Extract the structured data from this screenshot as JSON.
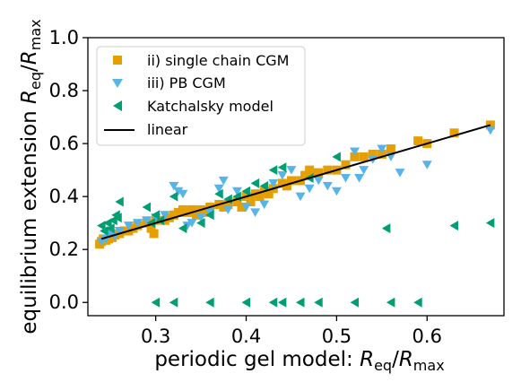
{
  "chart_data": {
    "type": "scatter",
    "xlabel": "periodic gel model: R_eq/R_max",
    "ylabel": "equilibrium extension R_eq/R_max",
    "xlabel_parts": {
      "text": "periodic gel model: ",
      "sym": "R",
      "sub1": "eq",
      "slash": "/",
      "sym2": "R",
      "sub2": "max"
    },
    "ylabel_parts": {
      "text": "equilibrium extension ",
      "sym": "R",
      "sub1": "eq",
      "slash": "/",
      "sym2": "R",
      "sub2": "max"
    },
    "xlim": [
      0.225,
      0.685
    ],
    "ylim": [
      -0.05,
      1.0
    ],
    "xticks": [
      0.3,
      0.4,
      0.5,
      0.6
    ],
    "xtick_labels": [
      "0.3",
      "0.4",
      "0.5",
      "0.6"
    ],
    "yticks": [
      0.0,
      0.2,
      0.4,
      0.6,
      0.8,
      1.0
    ],
    "ytick_labels": [
      "0.0",
      "0.2",
      "0.4",
      "0.6",
      "0.8",
      "1.0"
    ],
    "grid": false,
    "legend_position": "top-left",
    "series": [
      {
        "name": "ii) single chain CGM",
        "marker": "square",
        "color": "#E69F00",
        "points": [
          [
            0.238,
            0.22
          ],
          [
            0.24,
            0.23
          ],
          [
            0.242,
            0.24
          ],
          [
            0.245,
            0.235
          ],
          [
            0.248,
            0.24
          ],
          [
            0.25,
            0.25
          ],
          [
            0.252,
            0.245
          ],
          [
            0.255,
            0.255
          ],
          [
            0.26,
            0.26
          ],
          [
            0.265,
            0.27
          ],
          [
            0.27,
            0.27
          ],
          [
            0.275,
            0.28
          ],
          [
            0.28,
            0.29
          ],
          [
            0.29,
            0.3
          ],
          [
            0.295,
            0.28
          ],
          [
            0.298,
            0.26
          ],
          [
            0.3,
            0.31
          ],
          [
            0.31,
            0.31
          ],
          [
            0.315,
            0.32
          ],
          [
            0.32,
            0.33
          ],
          [
            0.325,
            0.34
          ],
          [
            0.33,
            0.35
          ],
          [
            0.335,
            0.34
          ],
          [
            0.34,
            0.35
          ],
          [
            0.345,
            0.33
          ],
          [
            0.35,
            0.35
          ],
          [
            0.355,
            0.34
          ],
          [
            0.36,
            0.36
          ],
          [
            0.37,
            0.37
          ],
          [
            0.375,
            0.36
          ],
          [
            0.38,
            0.37
          ],
          [
            0.39,
            0.38
          ],
          [
            0.395,
            0.36
          ],
          [
            0.4,
            0.4
          ],
          [
            0.405,
            0.38
          ],
          [
            0.41,
            0.41
          ],
          [
            0.415,
            0.4
          ],
          [
            0.42,
            0.42
          ],
          [
            0.425,
            0.41
          ],
          [
            0.43,
            0.43
          ],
          [
            0.44,
            0.45
          ],
          [
            0.445,
            0.44
          ],
          [
            0.45,
            0.46
          ],
          [
            0.46,
            0.46
          ],
          [
            0.465,
            0.48
          ],
          [
            0.47,
            0.5
          ],
          [
            0.475,
            0.49
          ],
          [
            0.48,
            0.49
          ],
          [
            0.49,
            0.5
          ],
          [
            0.5,
            0.5
          ],
          [
            0.51,
            0.52
          ],
          [
            0.52,
            0.55
          ],
          [
            0.53,
            0.55
          ],
          [
            0.54,
            0.56
          ],
          [
            0.55,
            0.56
          ],
          [
            0.56,
            0.58
          ],
          [
            0.59,
            0.61
          ],
          [
            0.6,
            0.6
          ],
          [
            0.63,
            0.64
          ],
          [
            0.67,
            0.67
          ]
        ]
      },
      {
        "name": "iii) PB CGM",
        "marker": "triangle-down",
        "color": "#56B4E9",
        "points": [
          [
            0.24,
            0.23
          ],
          [
            0.245,
            0.24
          ],
          [
            0.25,
            0.26
          ],
          [
            0.255,
            0.25
          ],
          [
            0.26,
            0.27
          ],
          [
            0.27,
            0.29
          ],
          [
            0.28,
            0.3
          ],
          [
            0.29,
            0.31
          ],
          [
            0.3,
            0.32
          ],
          [
            0.31,
            0.33
          ],
          [
            0.32,
            0.44
          ],
          [
            0.325,
            0.42
          ],
          [
            0.33,
            0.41
          ],
          [
            0.335,
            0.29
          ],
          [
            0.34,
            0.3
          ],
          [
            0.35,
            0.32
          ],
          [
            0.36,
            0.34
          ],
          [
            0.37,
            0.43
          ],
          [
            0.375,
            0.46
          ],
          [
            0.38,
            0.35
          ],
          [
            0.39,
            0.42
          ],
          [
            0.4,
            0.36
          ],
          [
            0.41,
            0.34
          ],
          [
            0.42,
            0.37
          ],
          [
            0.43,
            0.45
          ],
          [
            0.44,
            0.48
          ],
          [
            0.45,
            0.5
          ],
          [
            0.46,
            0.4
          ],
          [
            0.47,
            0.43
          ],
          [
            0.48,
            0.46
          ],
          [
            0.49,
            0.44
          ],
          [
            0.5,
            0.42
          ],
          [
            0.51,
            0.47
          ],
          [
            0.52,
            0.57
          ],
          [
            0.525,
            0.47
          ],
          [
            0.53,
            0.5
          ],
          [
            0.54,
            0.54
          ],
          [
            0.55,
            0.58
          ],
          [
            0.56,
            0.55
          ],
          [
            0.57,
            0.49
          ],
          [
            0.6,
            0.52
          ],
          [
            0.67,
            0.65
          ]
        ]
      },
      {
        "name": "Katchalsky model",
        "marker": "triangle-left",
        "color": "#009E73",
        "points": [
          [
            0.24,
            0.29
          ],
          [
            0.243,
            0.27
          ],
          [
            0.247,
            0.3
          ],
          [
            0.25,
            0.28
          ],
          [
            0.253,
            0.31
          ],
          [
            0.256,
            0.33
          ],
          [
            0.258,
            0.32
          ],
          [
            0.26,
            0.38
          ],
          [
            0.29,
            0.36
          ],
          [
            0.295,
            0.3
          ],
          [
            0.3,
            0.33
          ],
          [
            0.305,
            0.31
          ],
          [
            0.32,
            0.4
          ],
          [
            0.33,
            0.28
          ],
          [
            0.35,
            0.3
          ],
          [
            0.36,
            0.33
          ],
          [
            0.37,
            0.41
          ],
          [
            0.38,
            0.39
          ],
          [
            0.39,
            0.4
          ],
          [
            0.4,
            0.42
          ],
          [
            0.41,
            0.45
          ],
          [
            0.42,
            0.44
          ],
          [
            0.43,
            0.5
          ],
          [
            0.44,
            0.51
          ],
          [
            0.47,
            0.47
          ],
          [
            0.5,
            0.55
          ],
          [
            0.555,
            0.28
          ],
          [
            0.63,
            0.29
          ],
          [
            0.67,
            0.3
          ],
          [
            0.3,
            0.0
          ],
          [
            0.32,
            0.0
          ],
          [
            0.36,
            0.0
          ],
          [
            0.4,
            0.0
          ],
          [
            0.43,
            0.0
          ],
          [
            0.44,
            0.0
          ],
          [
            0.46,
            0.0
          ],
          [
            0.48,
            0.0
          ],
          [
            0.52,
            0.0
          ],
          [
            0.56,
            0.0
          ],
          [
            0.59,
            0.0
          ]
        ]
      },
      {
        "name": "linear",
        "marker": "line",
        "color": "#000000",
        "points": [
          [
            0.24,
            0.24
          ],
          [
            0.67,
            0.67
          ]
        ]
      }
    ]
  }
}
